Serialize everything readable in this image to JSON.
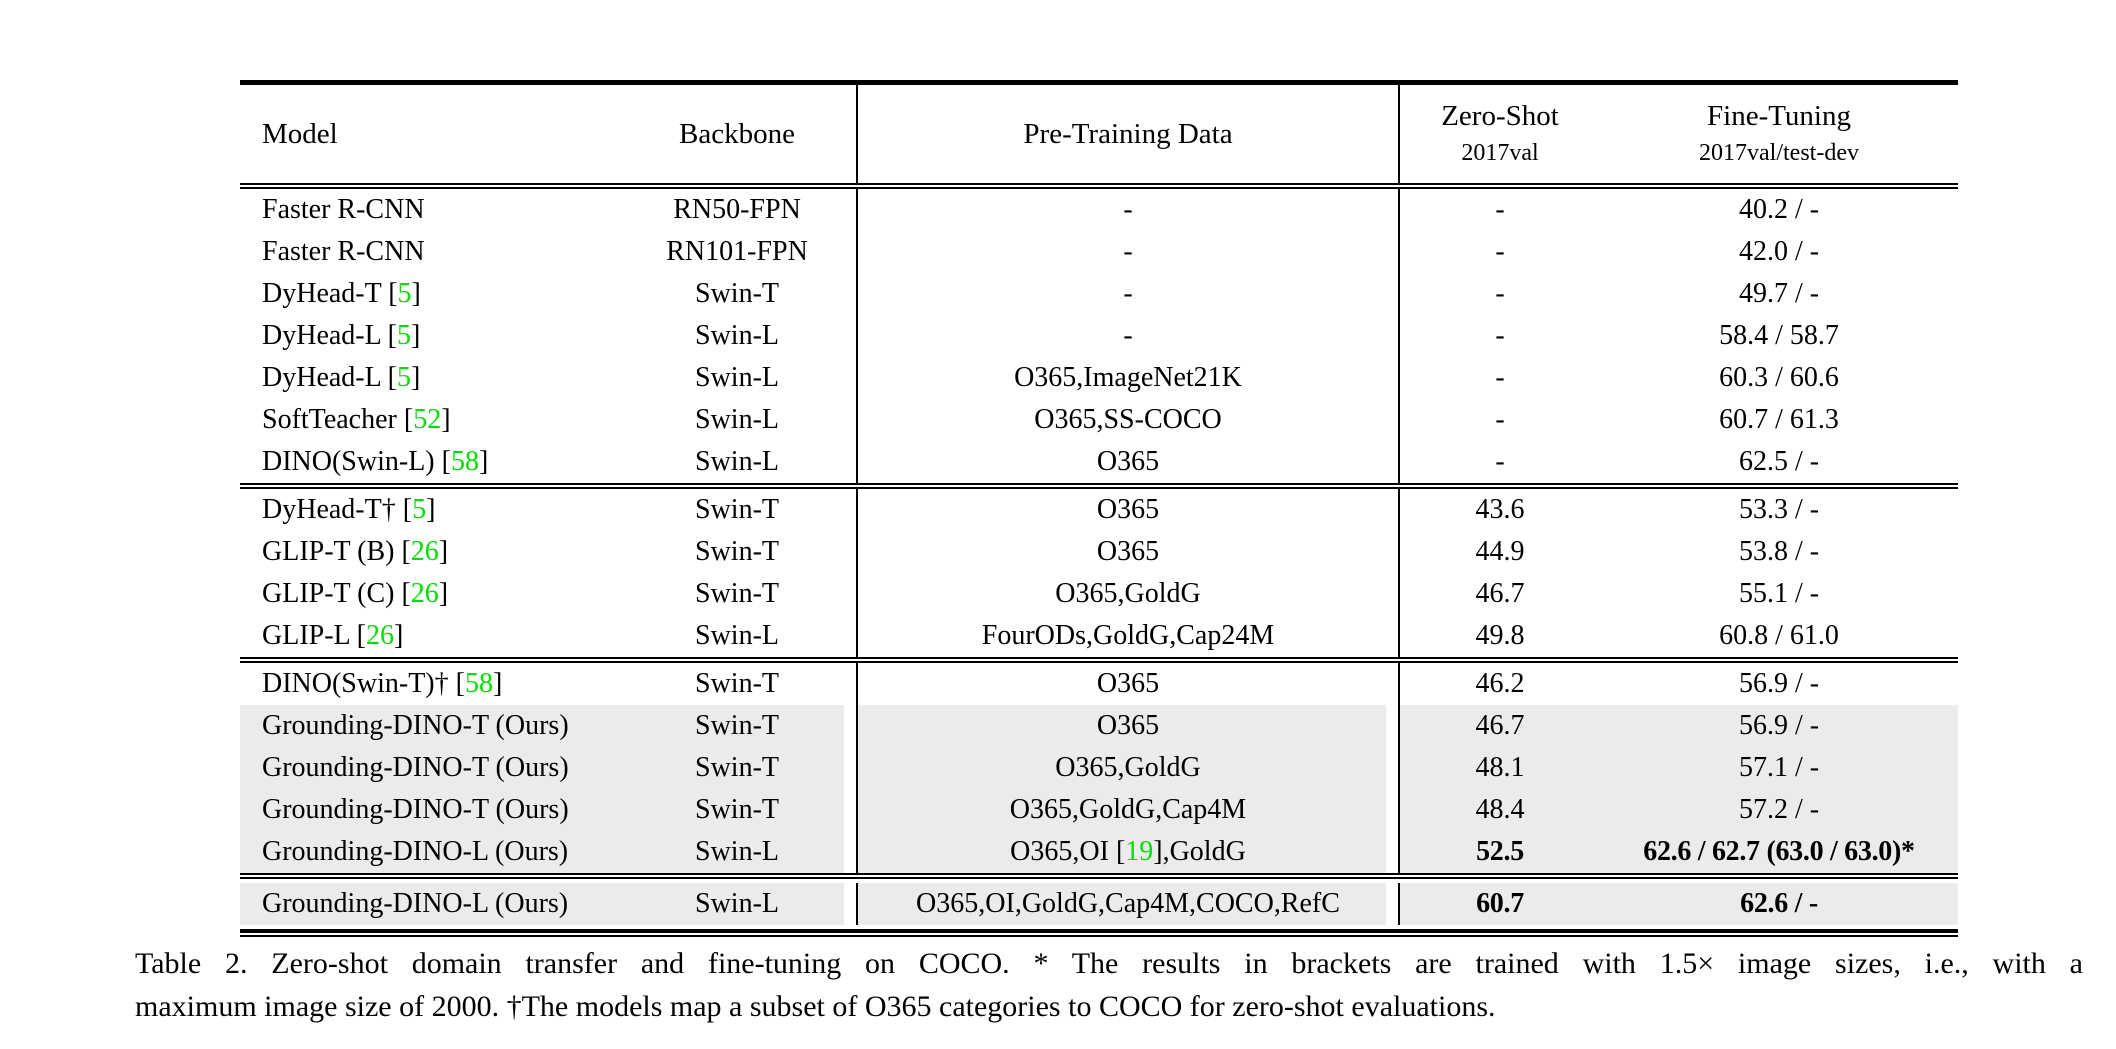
{
  "header": {
    "model": "Model",
    "backbone": "Backbone",
    "pretrain": "Pre-Training Data",
    "zero_shot_title": "Zero-Shot",
    "zero_shot_sub": "2017val",
    "fine_tune_title": "Fine-Tuning",
    "fine_tune_sub": "2017val/test-dev"
  },
  "colors": {
    "citation_green": "#00e000",
    "row_highlight": "#ebebeb",
    "rule_black": "#000000"
  },
  "blocks": [
    {
      "rows": [
        {
          "model": "Faster R-CNN",
          "backbone": "RN50-FPN",
          "pretrain": "-",
          "zero_shot": "-",
          "fine_tune": "40.2 / -",
          "highlight": false,
          "bold_zs": false,
          "bold_ft": false
        },
        {
          "model": "Faster R-CNN",
          "backbone": "RN101-FPN",
          "pretrain": "-",
          "zero_shot": "-",
          "fine_tune": "42.0 / -",
          "highlight": false,
          "bold_zs": false,
          "bold_ft": false
        },
        {
          "model": "DyHead-T [5]",
          "backbone": "Swin-T",
          "pretrain": "-",
          "zero_shot": "-",
          "fine_tune": "49.7 / -",
          "highlight": false,
          "bold_zs": false,
          "bold_ft": false
        },
        {
          "model": "DyHead-L [5]",
          "backbone": "Swin-L",
          "pretrain": "-",
          "zero_shot": "-",
          "fine_tune": "58.4 / 58.7",
          "highlight": false,
          "bold_zs": false,
          "bold_ft": false
        },
        {
          "model": "DyHead-L [5]",
          "backbone": "Swin-L",
          "pretrain": "O365,ImageNet21K",
          "zero_shot": "-",
          "fine_tune": "60.3 / 60.6",
          "highlight": false,
          "bold_zs": false,
          "bold_ft": false
        },
        {
          "model": "SoftTeacher [52]",
          "backbone": "Swin-L",
          "pretrain": "O365,SS-COCO",
          "zero_shot": "-",
          "fine_tune": "60.7 / 61.3",
          "highlight": false,
          "bold_zs": false,
          "bold_ft": false
        },
        {
          "model": "DINO(Swin-L) [58]",
          "backbone": "Swin-L",
          "pretrain": "O365",
          "zero_shot": "-",
          "fine_tune": "62.5 / -",
          "highlight": false,
          "bold_zs": false,
          "bold_ft": false
        }
      ]
    },
    {
      "rows": [
        {
          "model": "DyHead-T† [5]",
          "backbone": "Swin-T",
          "pretrain": "O365",
          "zero_shot": "43.6",
          "fine_tune": "53.3 / -",
          "highlight": false,
          "bold_zs": false,
          "bold_ft": false
        },
        {
          "model": "GLIP-T (B) [26]",
          "backbone": "Swin-T",
          "pretrain": "O365",
          "zero_shot": "44.9",
          "fine_tune": "53.8 / -",
          "highlight": false,
          "bold_zs": false,
          "bold_ft": false
        },
        {
          "model": "GLIP-T (C) [26]",
          "backbone": "Swin-T",
          "pretrain": "O365,GoldG",
          "zero_shot": "46.7",
          "fine_tune": "55.1 / -",
          "highlight": false,
          "bold_zs": false,
          "bold_ft": false
        },
        {
          "model": "GLIP-L [26]",
          "backbone": "Swin-L",
          "pretrain": "FourODs,GoldG,Cap24M",
          "zero_shot": "49.8",
          "fine_tune": "60.8 / 61.0",
          "highlight": false,
          "bold_zs": false,
          "bold_ft": false
        }
      ]
    },
    {
      "rows": [
        {
          "model": "DINO(Swin-T)† [58]",
          "backbone": "Swin-T",
          "pretrain": "O365",
          "zero_shot": "46.2",
          "fine_tune": "56.9 / -",
          "highlight": false,
          "bold_zs": false,
          "bold_ft": false
        },
        {
          "model": "Grounding-DINO-T (Ours)",
          "backbone": "Swin-T",
          "pretrain": "O365",
          "zero_shot": "46.7",
          "fine_tune": "56.9 / -",
          "highlight": true,
          "bold_zs": false,
          "bold_ft": false
        },
        {
          "model": "Grounding-DINO-T (Ours)",
          "backbone": "Swin-T",
          "pretrain": "O365,GoldG",
          "zero_shot": "48.1",
          "fine_tune": "57.1 / -",
          "highlight": true,
          "bold_zs": false,
          "bold_ft": false
        },
        {
          "model": "Grounding-DINO-T (Ours)",
          "backbone": "Swin-T",
          "pretrain": "O365,GoldG,Cap4M",
          "zero_shot": "48.4",
          "fine_tune": "57.2 / -",
          "highlight": true,
          "bold_zs": false,
          "bold_ft": false
        },
        {
          "model": "Grounding-DINO-L (Ours)",
          "backbone": "Swin-L",
          "pretrain": "O365,OI [19],GoldG",
          "zero_shot": "52.5",
          "fine_tune": "62.6 / 62.7 (63.0 / 63.0)*",
          "highlight": true,
          "bold_zs": true,
          "bold_ft": true
        }
      ]
    },
    {
      "rows": [
        {
          "model": "Grounding-DINO-L (Ours)",
          "backbone": "Swin-L",
          "pretrain": "O365,OI,GoldG,Cap4M,COCO,RefC",
          "zero_shot": "60.7",
          "fine_tune": "62.6 / -",
          "highlight": true,
          "bold_zs": true,
          "bold_ft": true
        }
      ]
    }
  ],
  "caption": {
    "line1": "Table 2. Zero-shot domain transfer and fine-tuning on COCO. * The results in brackets are trained with 1.5× image sizes, i.e., with a",
    "line2": "maximum image size of 2000. †The models map a subset of O365 categories to COCO for zero-shot evaluations."
  }
}
